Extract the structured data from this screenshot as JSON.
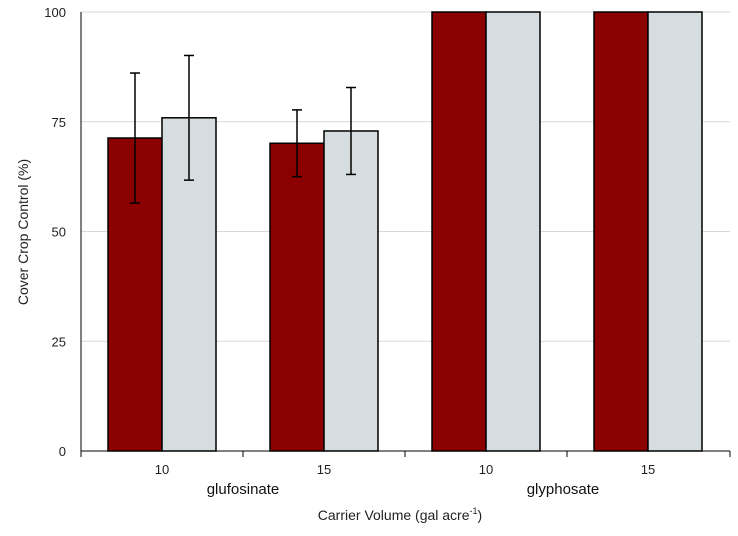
{
  "chart_data": {
    "type": "bar",
    "ylabel": "Cover Crop Control (%)",
    "xlabel": "Carrier Volume (gal acre",
    "xlabel_superscript": "-1",
    "xlabel_suffix": ")",
    "ylim": [
      0,
      100
    ],
    "yticks": [
      "0",
      "25",
      "50",
      "75",
      "100"
    ],
    "grid": true,
    "groups": [
      {
        "name": "glufosinate",
        "volumes": [
          "10",
          "15"
        ]
      },
      {
        "name": "glyphosate",
        "volumes": [
          "10",
          "15"
        ]
      }
    ],
    "categories": [
      "10",
      "15",
      "10",
      "15"
    ],
    "series": [
      {
        "color": "#8b0000",
        "values": [
          71.3,
          70.1,
          100,
          100
        ],
        "errors": [
          14.8,
          7.6,
          0,
          0
        ]
      },
      {
        "color": "#d6dde0",
        "values": [
          75.9,
          72.9,
          100,
          100
        ],
        "errors": [
          14.2,
          9.9,
          0,
          0
        ]
      }
    ]
  }
}
